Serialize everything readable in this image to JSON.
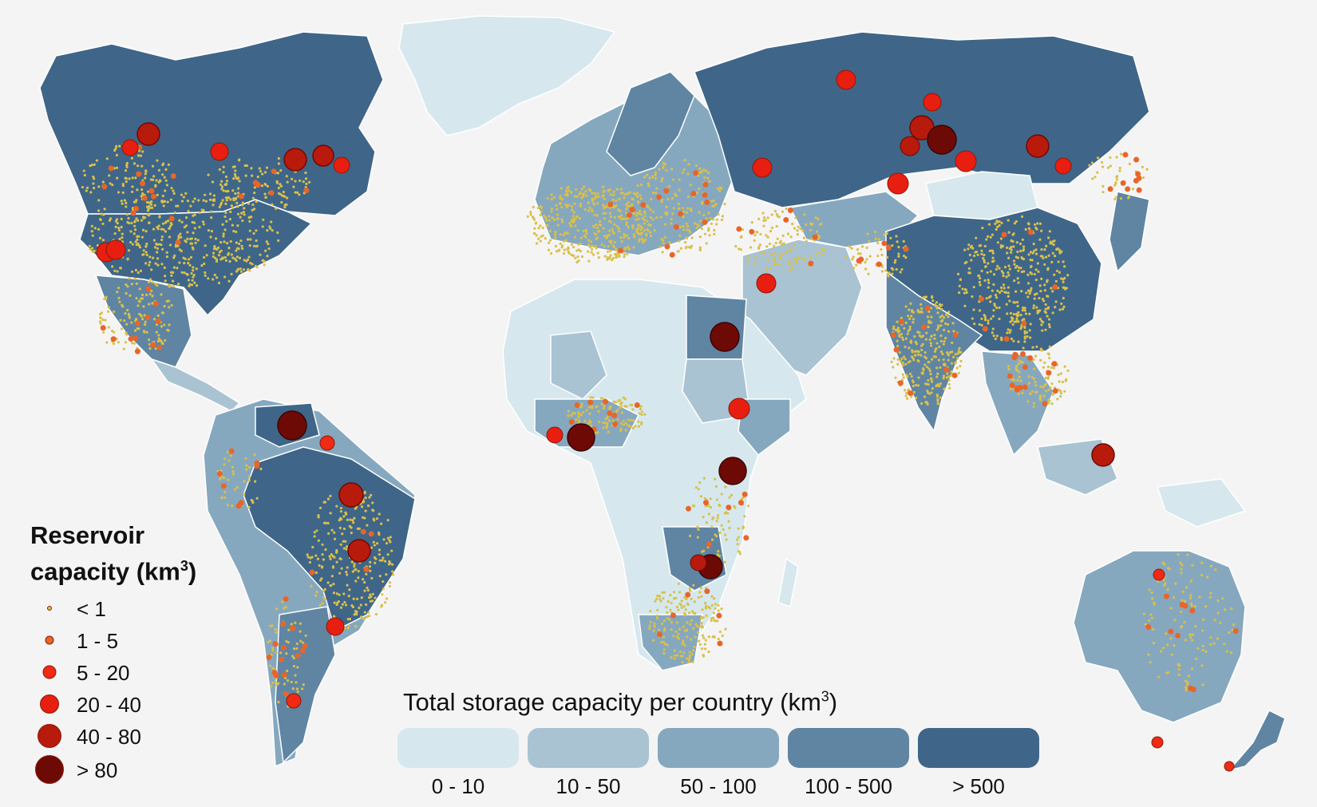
{
  "legend": {
    "reservoir_title_line1": "Reservoir",
    "reservoir_title_line2": "capacity (km",
    "reservoir_title_sup": "3",
    "reservoir_title_end": ")",
    "reservoir_classes": [
      {
        "label": "< 1",
        "color": "#d9c04a"
      },
      {
        "label": "1 - 5",
        "color": "#e8652a"
      },
      {
        "label": "5 - 20",
        "color": "#f02a14"
      },
      {
        "label": "20 - 40",
        "color": "#e81e10"
      },
      {
        "label": "40 - 80",
        "color": "#b81a0c"
      },
      {
        "label": "> 80",
        "color": "#6e0a06"
      }
    ],
    "storage_title": "Total storage capacity per country (km",
    "storage_title_sup": "3",
    "storage_title_end": ")",
    "storage_classes": [
      {
        "label": "0 - 10",
        "color": "#d6e8ee"
      },
      {
        "label": "10 - 50",
        "color": "#a9c3d2"
      },
      {
        "label": "50 - 100",
        "color": "#86a8bf"
      },
      {
        "label": "100 - 500",
        "color": "#5f85a3"
      },
      {
        "label": "> 500",
        "color": "#3f6689"
      }
    ]
  },
  "colors": {
    "background": "#f4f4f4",
    "country_border": "#ffffff",
    "small_dot": "#d9c04a",
    "dot_outline": "#8a1a0a"
  }
}
